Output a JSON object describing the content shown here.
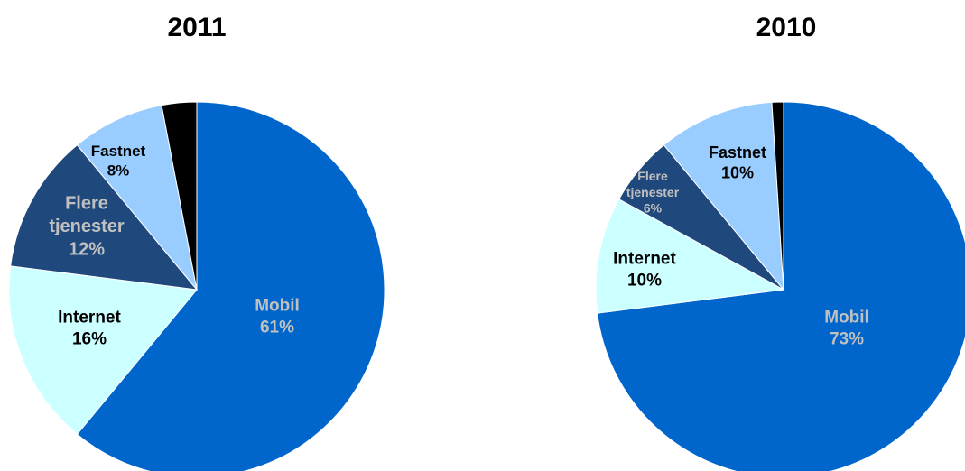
{
  "chart_data": [
    {
      "type": "pie",
      "title": "2011",
      "slices": [
        {
          "label": "Mobil",
          "value": 61,
          "pct_label": "61%",
          "color": "#0066CC",
          "text_color": "#C0C0C0"
        },
        {
          "label": "Internet",
          "value": 16,
          "pct_label": "16%",
          "color": "#CCFFFF",
          "text_color": "#000000"
        },
        {
          "label": "Flere tjenester",
          "value": 12,
          "pct_label": "12%",
          "color": "#1F497D",
          "text_color": "#C0C0C0"
        },
        {
          "label": "Fastnet",
          "value": 8,
          "pct_label": "8%",
          "color": "#99CCFF",
          "text_color": "#000000"
        },
        {
          "label": "",
          "value": 3,
          "pct_label": "",
          "color": "#000000",
          "text_color": "#000000"
        }
      ]
    },
    {
      "type": "pie",
      "title": "2010",
      "slices": [
        {
          "label": "Mobil",
          "value": 73,
          "pct_label": "73%",
          "color": "#0066CC",
          "text_color": "#C0C0C0"
        },
        {
          "label": "Internet",
          "value": 10,
          "pct_label": "10%",
          "color": "#CCFFFF",
          "text_color": "#000000"
        },
        {
          "label": "Flere tjenester",
          "value": 6,
          "pct_label": "6%",
          "color": "#1F497D",
          "text_color": "#C0C0C0"
        },
        {
          "label": "Fastnet",
          "value": 10,
          "pct_label": "10%",
          "color": "#99CCFF",
          "text_color": "#000000"
        },
        {
          "label": "",
          "value": 1,
          "pct_label": "",
          "color": "#000000",
          "text_color": "#000000"
        }
      ]
    }
  ]
}
